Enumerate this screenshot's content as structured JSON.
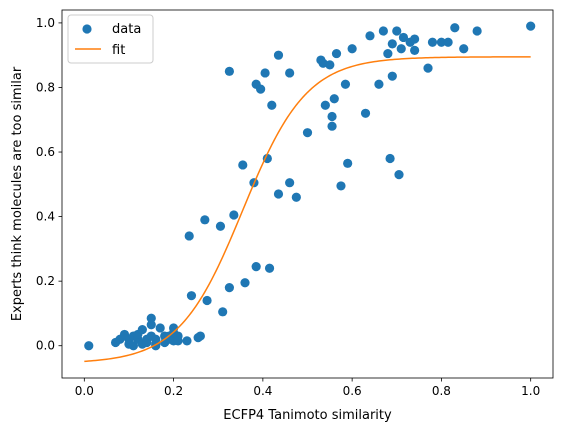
{
  "chart_data": {
    "type": "scatter",
    "title": "",
    "xlabel": "ECFP4 Tanimoto similarity",
    "ylabel": "Experts think molecules are too similar",
    "xlim": [
      -0.05,
      1.05
    ],
    "ylim": [
      -0.1,
      1.04
    ],
    "xticks": [
      0.0,
      0.2,
      0.4,
      0.6,
      0.8,
      1.0
    ],
    "xtick_labels": [
      "0.0",
      "0.2",
      "0.4",
      "0.6",
      "0.8",
      "1.0"
    ],
    "yticks": [
      0.0,
      0.2,
      0.4,
      0.6,
      0.8,
      1.0
    ],
    "ytick_labels": [
      "0.0",
      "0.2",
      "0.4",
      "0.6",
      "0.8",
      "1.0"
    ],
    "grid": false,
    "legend": {
      "placement": "top-left",
      "entries": [
        "data",
        "fit"
      ]
    },
    "series": [
      {
        "name": "data",
        "kind": "scatter",
        "color": "#1f77b4",
        "points": [
          [
            0.01,
            0.0
          ],
          [
            0.07,
            0.01
          ],
          [
            0.08,
            0.02
          ],
          [
            0.09,
            0.035
          ],
          [
            0.1,
            0.005
          ],
          [
            0.1,
            0.02
          ],
          [
            0.11,
            0.0
          ],
          [
            0.11,
            0.03
          ],
          [
            0.12,
            0.02
          ],
          [
            0.12,
            0.035
          ],
          [
            0.13,
            0.005
          ],
          [
            0.13,
            0.05
          ],
          [
            0.14,
            0.02
          ],
          [
            0.14,
            0.01
          ],
          [
            0.15,
            0.03
          ],
          [
            0.15,
            0.065
          ],
          [
            0.15,
            0.085
          ],
          [
            0.16,
            0.005
          ],
          [
            0.16,
            0.0
          ],
          [
            0.16,
            0.02
          ],
          [
            0.17,
            0.055
          ],
          [
            0.18,
            0.03
          ],
          [
            0.18,
            0.01
          ],
          [
            0.19,
            0.02
          ],
          [
            0.19,
            0.03
          ],
          [
            0.2,
            0.055
          ],
          [
            0.2,
            0.015
          ],
          [
            0.2,
            0.04
          ],
          [
            0.21,
            0.03
          ],
          [
            0.21,
            0.015
          ],
          [
            0.23,
            0.015
          ],
          [
            0.255,
            0.025
          ],
          [
            0.26,
            0.03
          ],
          [
            0.24,
            0.155
          ],
          [
            0.275,
            0.14
          ],
          [
            0.31,
            0.105
          ],
          [
            0.325,
            0.18
          ],
          [
            0.36,
            0.195
          ],
          [
            0.385,
            0.245
          ],
          [
            0.415,
            0.24
          ],
          [
            0.235,
            0.34
          ],
          [
            0.27,
            0.39
          ],
          [
            0.305,
            0.37
          ],
          [
            0.335,
            0.405
          ],
          [
            0.355,
            0.56
          ],
          [
            0.38,
            0.505
          ],
          [
            0.41,
            0.58
          ],
          [
            0.435,
            0.47
          ],
          [
            0.46,
            0.505
          ],
          [
            0.475,
            0.46
          ],
          [
            0.325,
            0.85
          ],
          [
            0.385,
            0.81
          ],
          [
            0.395,
            0.795
          ],
          [
            0.405,
            0.845
          ],
          [
            0.42,
            0.745
          ],
          [
            0.435,
            0.9
          ],
          [
            0.46,
            0.845
          ],
          [
            0.5,
            0.66
          ],
          [
            0.53,
            0.885
          ],
          [
            0.535,
            0.875
          ],
          [
            0.54,
            0.745
          ],
          [
            0.55,
            0.87
          ],
          [
            0.555,
            0.71
          ],
          [
            0.555,
            0.68
          ],
          [
            0.56,
            0.765
          ],
          [
            0.565,
            0.905
          ],
          [
            0.575,
            0.495
          ],
          [
            0.585,
            0.81
          ],
          [
            0.59,
            0.565
          ],
          [
            0.6,
            0.92
          ],
          [
            0.63,
            0.72
          ],
          [
            0.64,
            0.96
          ],
          [
            0.66,
            0.81
          ],
          [
            0.67,
            0.975
          ],
          [
            0.68,
            0.905
          ],
          [
            0.685,
            0.58
          ],
          [
            0.69,
            0.835
          ],
          [
            0.69,
            0.935
          ],
          [
            0.7,
            0.975
          ],
          [
            0.705,
            0.53
          ],
          [
            0.71,
            0.92
          ],
          [
            0.715,
            0.955
          ],
          [
            0.73,
            0.94
          ],
          [
            0.74,
            0.915
          ],
          [
            0.74,
            0.95
          ],
          [
            0.77,
            0.86
          ],
          [
            0.78,
            0.94
          ],
          [
            0.8,
            0.94
          ],
          [
            0.815,
            0.94
          ],
          [
            0.83,
            0.985
          ],
          [
            0.85,
            0.92
          ],
          [
            0.88,
            0.975
          ],
          [
            1.0,
            0.99
          ]
        ]
      },
      {
        "name": "fit",
        "kind": "line",
        "color": "#ff7f0e",
        "model": "logistic",
        "params": {
          "lower": -0.055,
          "upper": 0.895,
          "midpoint": 0.355,
          "steepness": 14.0
        },
        "x_range": [
          0.0,
          1.0
        ]
      }
    ]
  }
}
